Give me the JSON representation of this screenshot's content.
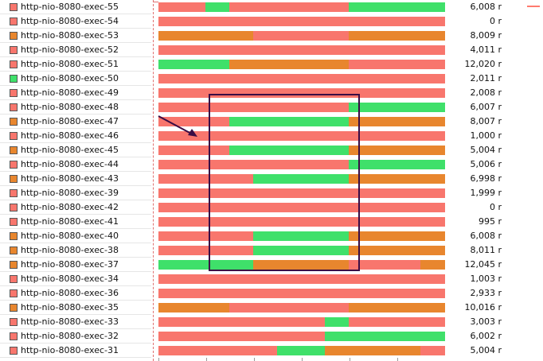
{
  "colors": {
    "salmon": "#f8766d",
    "green": "#3fe06a",
    "orange": "#e8862e",
    "annotation": "#3a0d45"
  },
  "threads": [
    {
      "name": "http-nio-8080-exec-55",
      "icon": "salmon",
      "count": "6,008 r",
      "segments": [
        [
          "salmon",
          0,
          59
        ],
        [
          "green",
          59,
          89
        ],
        [
          "salmon",
          89,
          239
        ],
        [
          "green",
          239,
          360
        ]
      ]
    },
    {
      "name": "http-nio-8080-exec-54",
      "icon": "salmon",
      "count": "0 r",
      "segments": [
        [
          "salmon",
          0,
          360
        ]
      ]
    },
    {
      "name": "http-nio-8080-exec-53",
      "icon": "orange",
      "count": "8,009 r",
      "segments": [
        [
          "orange",
          0,
          119
        ],
        [
          "salmon",
          119,
          239
        ],
        [
          "orange",
          239,
          360
        ]
      ]
    },
    {
      "name": "http-nio-8080-exec-52",
      "icon": "salmon",
      "count": "4,011 r",
      "segments": [
        [
          "salmon",
          0,
          360
        ]
      ]
    },
    {
      "name": "http-nio-8080-exec-51",
      "icon": "salmon",
      "count": "12,020 r",
      "segments": [
        [
          "green",
          0,
          89
        ],
        [
          "orange",
          89,
          239
        ],
        [
          "salmon",
          239,
          360
        ]
      ]
    },
    {
      "name": "http-nio-8080-exec-50",
      "icon": "green",
      "count": "2,011 r",
      "segments": [
        [
          "salmon",
          0,
          360
        ]
      ]
    },
    {
      "name": "http-nio-8080-exec-49",
      "icon": "salmon",
      "count": "2,008 r",
      "segments": [
        [
          "salmon",
          0,
          360
        ]
      ]
    },
    {
      "name": "http-nio-8080-exec-48",
      "icon": "salmon",
      "count": "6,007 r",
      "segments": [
        [
          "salmon",
          0,
          239
        ],
        [
          "green",
          239,
          360
        ]
      ]
    },
    {
      "name": "http-nio-8080-exec-47",
      "icon": "orange",
      "count": "8,007 r",
      "segments": [
        [
          "salmon",
          0,
          89
        ],
        [
          "green",
          89,
          239
        ],
        [
          "orange",
          239,
          360
        ]
      ]
    },
    {
      "name": "http-nio-8080-exec-46",
      "icon": "salmon",
      "count": "1,000 r",
      "segments": [
        [
          "salmon",
          0,
          360
        ]
      ]
    },
    {
      "name": "http-nio-8080-exec-45",
      "icon": "orange",
      "count": "5,004 r",
      "segments": [
        [
          "salmon",
          0,
          89
        ],
        [
          "green",
          89,
          239
        ],
        [
          "orange",
          239,
          360
        ]
      ]
    },
    {
      "name": "http-nio-8080-exec-44",
      "icon": "salmon",
      "count": "5,006 r",
      "segments": [
        [
          "salmon",
          0,
          239
        ],
        [
          "green",
          239,
          360
        ]
      ]
    },
    {
      "name": "http-nio-8080-exec-43",
      "icon": "orange",
      "count": "6,998 r",
      "segments": [
        [
          "salmon",
          0,
          119
        ],
        [
          "green",
          119,
          239
        ],
        [
          "orange",
          239,
          360
        ]
      ]
    },
    {
      "name": "http-nio-8080-exec-39",
      "icon": "salmon",
      "count": "1,999 r",
      "segments": [
        [
          "salmon",
          0,
          360
        ]
      ]
    },
    {
      "name": "http-nio-8080-exec-42",
      "icon": "salmon",
      "count": "0 r",
      "segments": [
        [
          "salmon",
          0,
          360
        ]
      ]
    },
    {
      "name": "http-nio-8080-exec-41",
      "icon": "salmon",
      "count": "995 r",
      "segments": [
        [
          "salmon",
          0,
          360
        ]
      ]
    },
    {
      "name": "http-nio-8080-exec-40",
      "icon": "orange",
      "count": "6,008 r",
      "segments": [
        [
          "salmon",
          0,
          119
        ],
        [
          "green",
          119,
          239
        ],
        [
          "orange",
          239,
          360
        ]
      ]
    },
    {
      "name": "http-nio-8080-exec-38",
      "icon": "orange",
      "count": "8,011 r",
      "segments": [
        [
          "salmon",
          0,
          119
        ],
        [
          "green",
          119,
          239
        ],
        [
          "orange",
          239,
          360
        ]
      ]
    },
    {
      "name": "http-nio-8080-exec-37",
      "icon": "orange",
      "count": "12,045 r",
      "segments": [
        [
          "green",
          0,
          119
        ],
        [
          "orange",
          119,
          239
        ],
        [
          "salmon",
          239,
          329
        ],
        [
          "orange",
          329,
          360
        ]
      ]
    },
    {
      "name": "http-nio-8080-exec-34",
      "icon": "salmon",
      "count": "1,003 r",
      "segments": [
        [
          "salmon",
          0,
          360
        ]
      ]
    },
    {
      "name": "http-nio-8080-exec-36",
      "icon": "salmon",
      "count": "2,933 r",
      "segments": [
        [
          "salmon",
          0,
          360
        ]
      ]
    },
    {
      "name": "http-nio-8080-exec-35",
      "icon": "orange",
      "count": "10,016 r",
      "segments": [
        [
          "orange",
          0,
          89
        ],
        [
          "salmon",
          89,
          239
        ],
        [
          "orange",
          239,
          360
        ]
      ]
    },
    {
      "name": "http-nio-8080-exec-33",
      "icon": "salmon",
      "count": "3,003 r",
      "segments": [
        [
          "salmon",
          0,
          209
        ],
        [
          "green",
          209,
          239
        ],
        [
          "salmon",
          239,
          360
        ]
      ]
    },
    {
      "name": "http-nio-8080-exec-32",
      "icon": "salmon",
      "count": "6,002 r",
      "segments": [
        [
          "salmon",
          0,
          209
        ],
        [
          "green",
          209,
          360
        ]
      ]
    },
    {
      "name": "http-nio-8080-exec-31",
      "icon": "salmon",
      "count": "5,004 r",
      "segments": [
        [
          "salmon",
          0,
          149
        ],
        [
          "green",
          149,
          209
        ],
        [
          "orange",
          209,
          329
        ],
        [
          "salmon",
          329,
          360
        ]
      ]
    }
  ]
}
